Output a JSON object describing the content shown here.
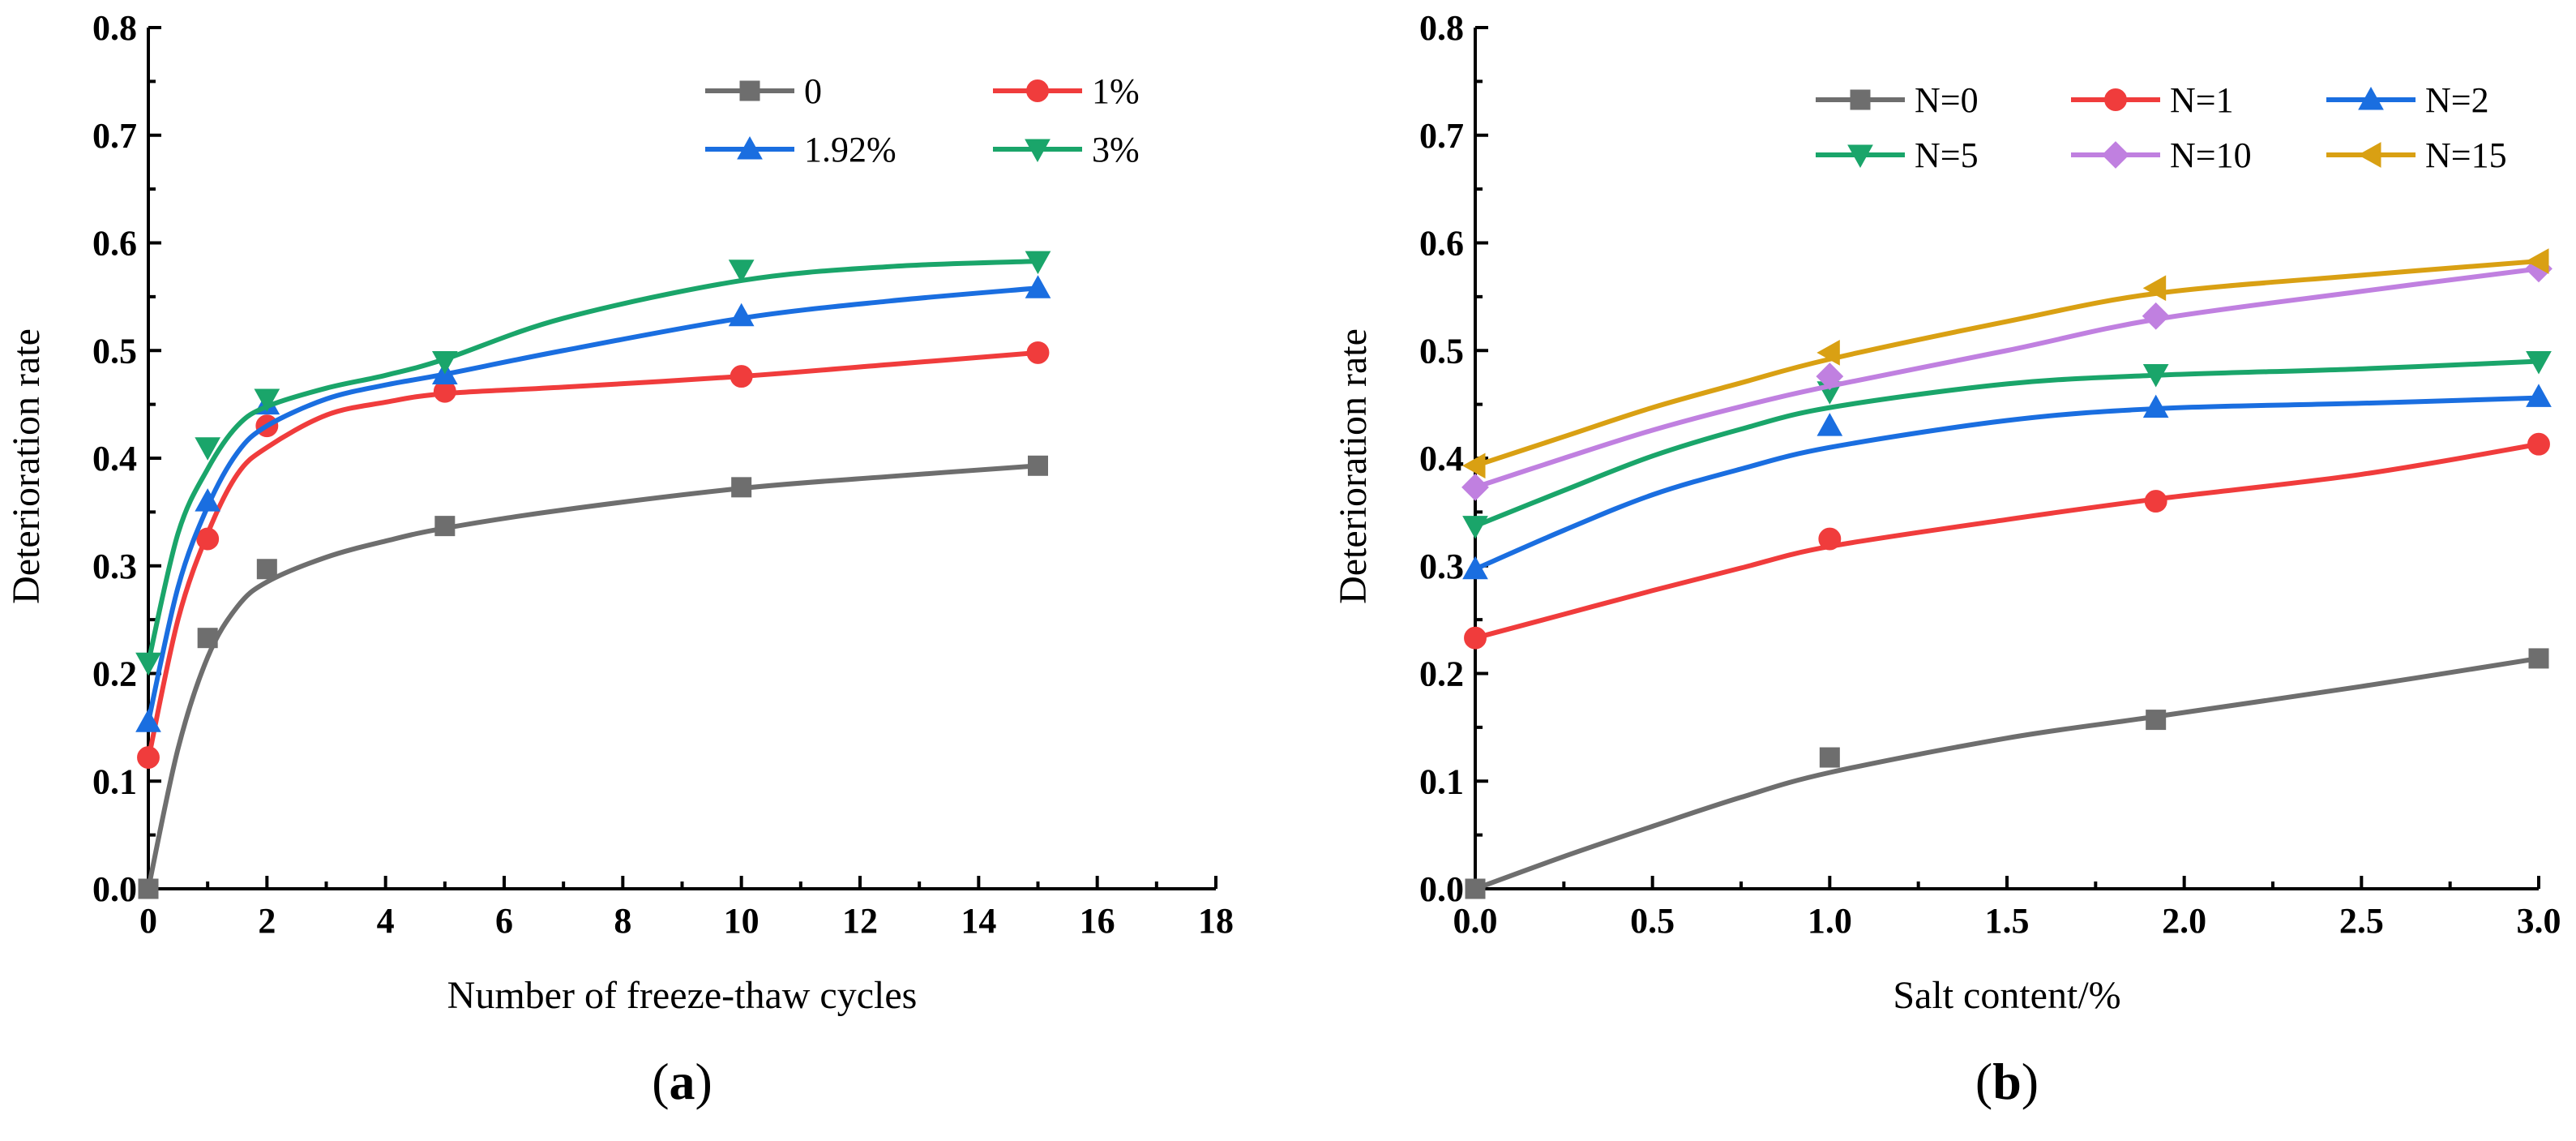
{
  "chart_data": [
    {
      "type": "line",
      "panel_label": "a",
      "xlabel": "Number of freeze-thaw cycles",
      "ylabel": "Deterioration rate",
      "xlim": [
        0,
        18
      ],
      "ylim": [
        0,
        0.8
      ],
      "x_ticks": [
        "0",
        "2",
        "4",
        "6",
        "8",
        "10",
        "12",
        "14",
        "16",
        "18"
      ],
      "y_ticks": [
        "0.0",
        "0.1",
        "0.2",
        "0.3",
        "0.4",
        "0.5",
        "0.6",
        "0.7",
        "0.8"
      ],
      "legend_position": "top-right",
      "series": [
        {
          "name": "0",
          "color": "#6e6e6e",
          "marker": "square",
          "x": [
            0,
            1,
            2,
            5,
            10,
            15
          ],
          "y": [
            0.0,
            0.233,
            0.297,
            0.337,
            0.373,
            0.393
          ],
          "fit": [
            [
              0,
              0.0
            ],
            [
              0.5,
              0.13
            ],
            [
              1,
              0.215
            ],
            [
              1.5,
              0.262
            ],
            [
              2,
              0.285
            ],
            [
              3,
              0.308
            ],
            [
              4,
              0.323
            ],
            [
              5,
              0.335
            ],
            [
              7,
              0.352
            ],
            [
              10,
              0.372
            ],
            [
              12.5,
              0.383
            ],
            [
              15,
              0.393
            ]
          ]
        },
        {
          "name": "1%",
          "color": "#f03c3c",
          "marker": "circle",
          "x": [
            0,
            1,
            2,
            5,
            10,
            15
          ],
          "y": [
            0.122,
            0.325,
            0.43,
            0.462,
            0.476,
            0.498
          ],
          "fit": [
            [
              0,
              0.12
            ],
            [
              0.5,
              0.25
            ],
            [
              1,
              0.33
            ],
            [
              1.5,
              0.385
            ],
            [
              2,
              0.41
            ],
            [
              3,
              0.44
            ],
            [
              4,
              0.452
            ],
            [
              5,
              0.46
            ],
            [
              7,
              0.466
            ],
            [
              10,
              0.476
            ],
            [
              12.5,
              0.487
            ],
            [
              15,
              0.498
            ]
          ]
        },
        {
          "name": "1.92%",
          "color": "#1a6ee0",
          "marker": "triangle-up",
          "x": [
            0,
            1,
            2,
            5,
            10,
            15
          ],
          "y": [
            0.155,
            0.36,
            0.45,
            0.478,
            0.532,
            0.558
          ],
          "fit": [
            [
              0,
              0.155
            ],
            [
              0.5,
              0.28
            ],
            [
              1,
              0.355
            ],
            [
              1.5,
              0.405
            ],
            [
              2,
              0.43
            ],
            [
              3,
              0.455
            ],
            [
              4,
              0.468
            ],
            [
              5,
              0.478
            ],
            [
              7,
              0.5
            ],
            [
              10,
              0.53
            ],
            [
              12.5,
              0.546
            ],
            [
              15,
              0.558
            ]
          ]
        },
        {
          "name": "3%",
          "color": "#1aa56a",
          "marker": "triangle-down",
          "x": [
            0,
            1,
            2,
            5,
            10,
            15
          ],
          "y": [
            0.21,
            0.41,
            0.455,
            0.49,
            0.575,
            0.583
          ],
          "fit": [
            [
              0,
              0.21
            ],
            [
              0.5,
              0.33
            ],
            [
              1,
              0.39
            ],
            [
              1.5,
              0.43
            ],
            [
              2,
              0.448
            ],
            [
              3,
              0.465
            ],
            [
              4,
              0.477
            ],
            [
              5,
              0.492
            ],
            [
              7,
              0.53
            ],
            [
              10,
              0.565
            ],
            [
              12.5,
              0.578
            ],
            [
              15,
              0.583
            ]
          ]
        }
      ]
    },
    {
      "type": "line",
      "panel_label": "b",
      "xlabel": "Salt content/%",
      "ylabel": "Deterioration rate",
      "xlim": [
        0,
        3
      ],
      "ylim": [
        0,
        0.8
      ],
      "x_ticks": [
        "0.0",
        "0.5",
        "1.0",
        "1.5",
        "2.0",
        "2.5",
        "3.0"
      ],
      "y_ticks": [
        "0.0",
        "0.1",
        "0.2",
        "0.3",
        "0.4",
        "0.5",
        "0.6",
        "0.7",
        "0.8"
      ],
      "legend_position": "top-right",
      "series": [
        {
          "name": "N=0",
          "color": "#6e6e6e",
          "marker": "square",
          "x": [
            0,
            1,
            1.92,
            3
          ],
          "y": [
            0.0,
            0.122,
            0.157,
            0.214
          ],
          "fit": [
            [
              0,
              0.0
            ],
            [
              0.25,
              0.03
            ],
            [
              0.5,
              0.058
            ],
            [
              0.75,
              0.085
            ],
            [
              1,
              0.108
            ],
            [
              1.5,
              0.14
            ],
            [
              1.92,
              0.16
            ],
            [
              2.5,
              0.188
            ],
            [
              3,
              0.214
            ]
          ]
        },
        {
          "name": "N=1",
          "color": "#f03c3c",
          "marker": "circle",
          "x": [
            0,
            1,
            1.92,
            3
          ],
          "y": [
            0.233,
            0.325,
            0.36,
            0.413
          ],
          "fit": [
            [
              0,
              0.233
            ],
            [
              0.25,
              0.255
            ],
            [
              0.5,
              0.277
            ],
            [
              0.75,
              0.298
            ],
            [
              1,
              0.318
            ],
            [
              1.5,
              0.343
            ],
            [
              1.92,
              0.362
            ],
            [
              2.5,
              0.385
            ],
            [
              3,
              0.413
            ]
          ]
        },
        {
          "name": "N=2",
          "color": "#1a6ee0",
          "marker": "triangle-up",
          "x": [
            0,
            1,
            1.92,
            3
          ],
          "y": [
            0.297,
            0.43,
            0.447,
            0.457
          ],
          "fit": [
            [
              0,
              0.297
            ],
            [
              0.25,
              0.333
            ],
            [
              0.5,
              0.366
            ],
            [
              0.75,
              0.39
            ],
            [
              1,
              0.41
            ],
            [
              1.5,
              0.435
            ],
            [
              1.92,
              0.446
            ],
            [
              2.5,
              0.451
            ],
            [
              3,
              0.456
            ]
          ]
        },
        {
          "name": "N=5",
          "color": "#1aa56a",
          "marker": "triangle-down",
          "x": [
            0,
            1,
            1.92,
            3
          ],
          "y": [
            0.337,
            0.462,
            0.478,
            0.49
          ],
          "fit": [
            [
              0,
              0.337
            ],
            [
              0.25,
              0.37
            ],
            [
              0.5,
              0.402
            ],
            [
              0.75,
              0.427
            ],
            [
              1,
              0.447
            ],
            [
              1.5,
              0.469
            ],
            [
              1.92,
              0.477
            ],
            [
              2.5,
              0.483
            ],
            [
              3,
              0.49
            ]
          ]
        },
        {
          "name": "N=10",
          "color": "#c080e0",
          "marker": "diamond",
          "x": [
            0,
            1,
            1.92,
            3
          ],
          "y": [
            0.373,
            0.476,
            0.532,
            0.576
          ],
          "fit": [
            [
              0,
              0.373
            ],
            [
              0.25,
              0.4
            ],
            [
              0.5,
              0.426
            ],
            [
              0.75,
              0.448
            ],
            [
              1,
              0.467
            ],
            [
              1.5,
              0.5
            ],
            [
              1.92,
              0.529
            ],
            [
              2.5,
              0.555
            ],
            [
              3,
              0.576
            ]
          ]
        },
        {
          "name": "N=15",
          "color": "#d9a013",
          "marker": "triangle-left",
          "x": [
            0,
            1,
            1.92,
            3
          ],
          "y": [
            0.393,
            0.498,
            0.558,
            0.583
          ],
          "fit": [
            [
              0,
              0.393
            ],
            [
              0.25,
              0.42
            ],
            [
              0.5,
              0.447
            ],
            [
              0.75,
              0.47
            ],
            [
              1,
              0.492
            ],
            [
              1.5,
              0.527
            ],
            [
              1.92,
              0.553
            ],
            [
              2.5,
              0.57
            ],
            [
              3,
              0.583
            ]
          ]
        }
      ]
    }
  ]
}
